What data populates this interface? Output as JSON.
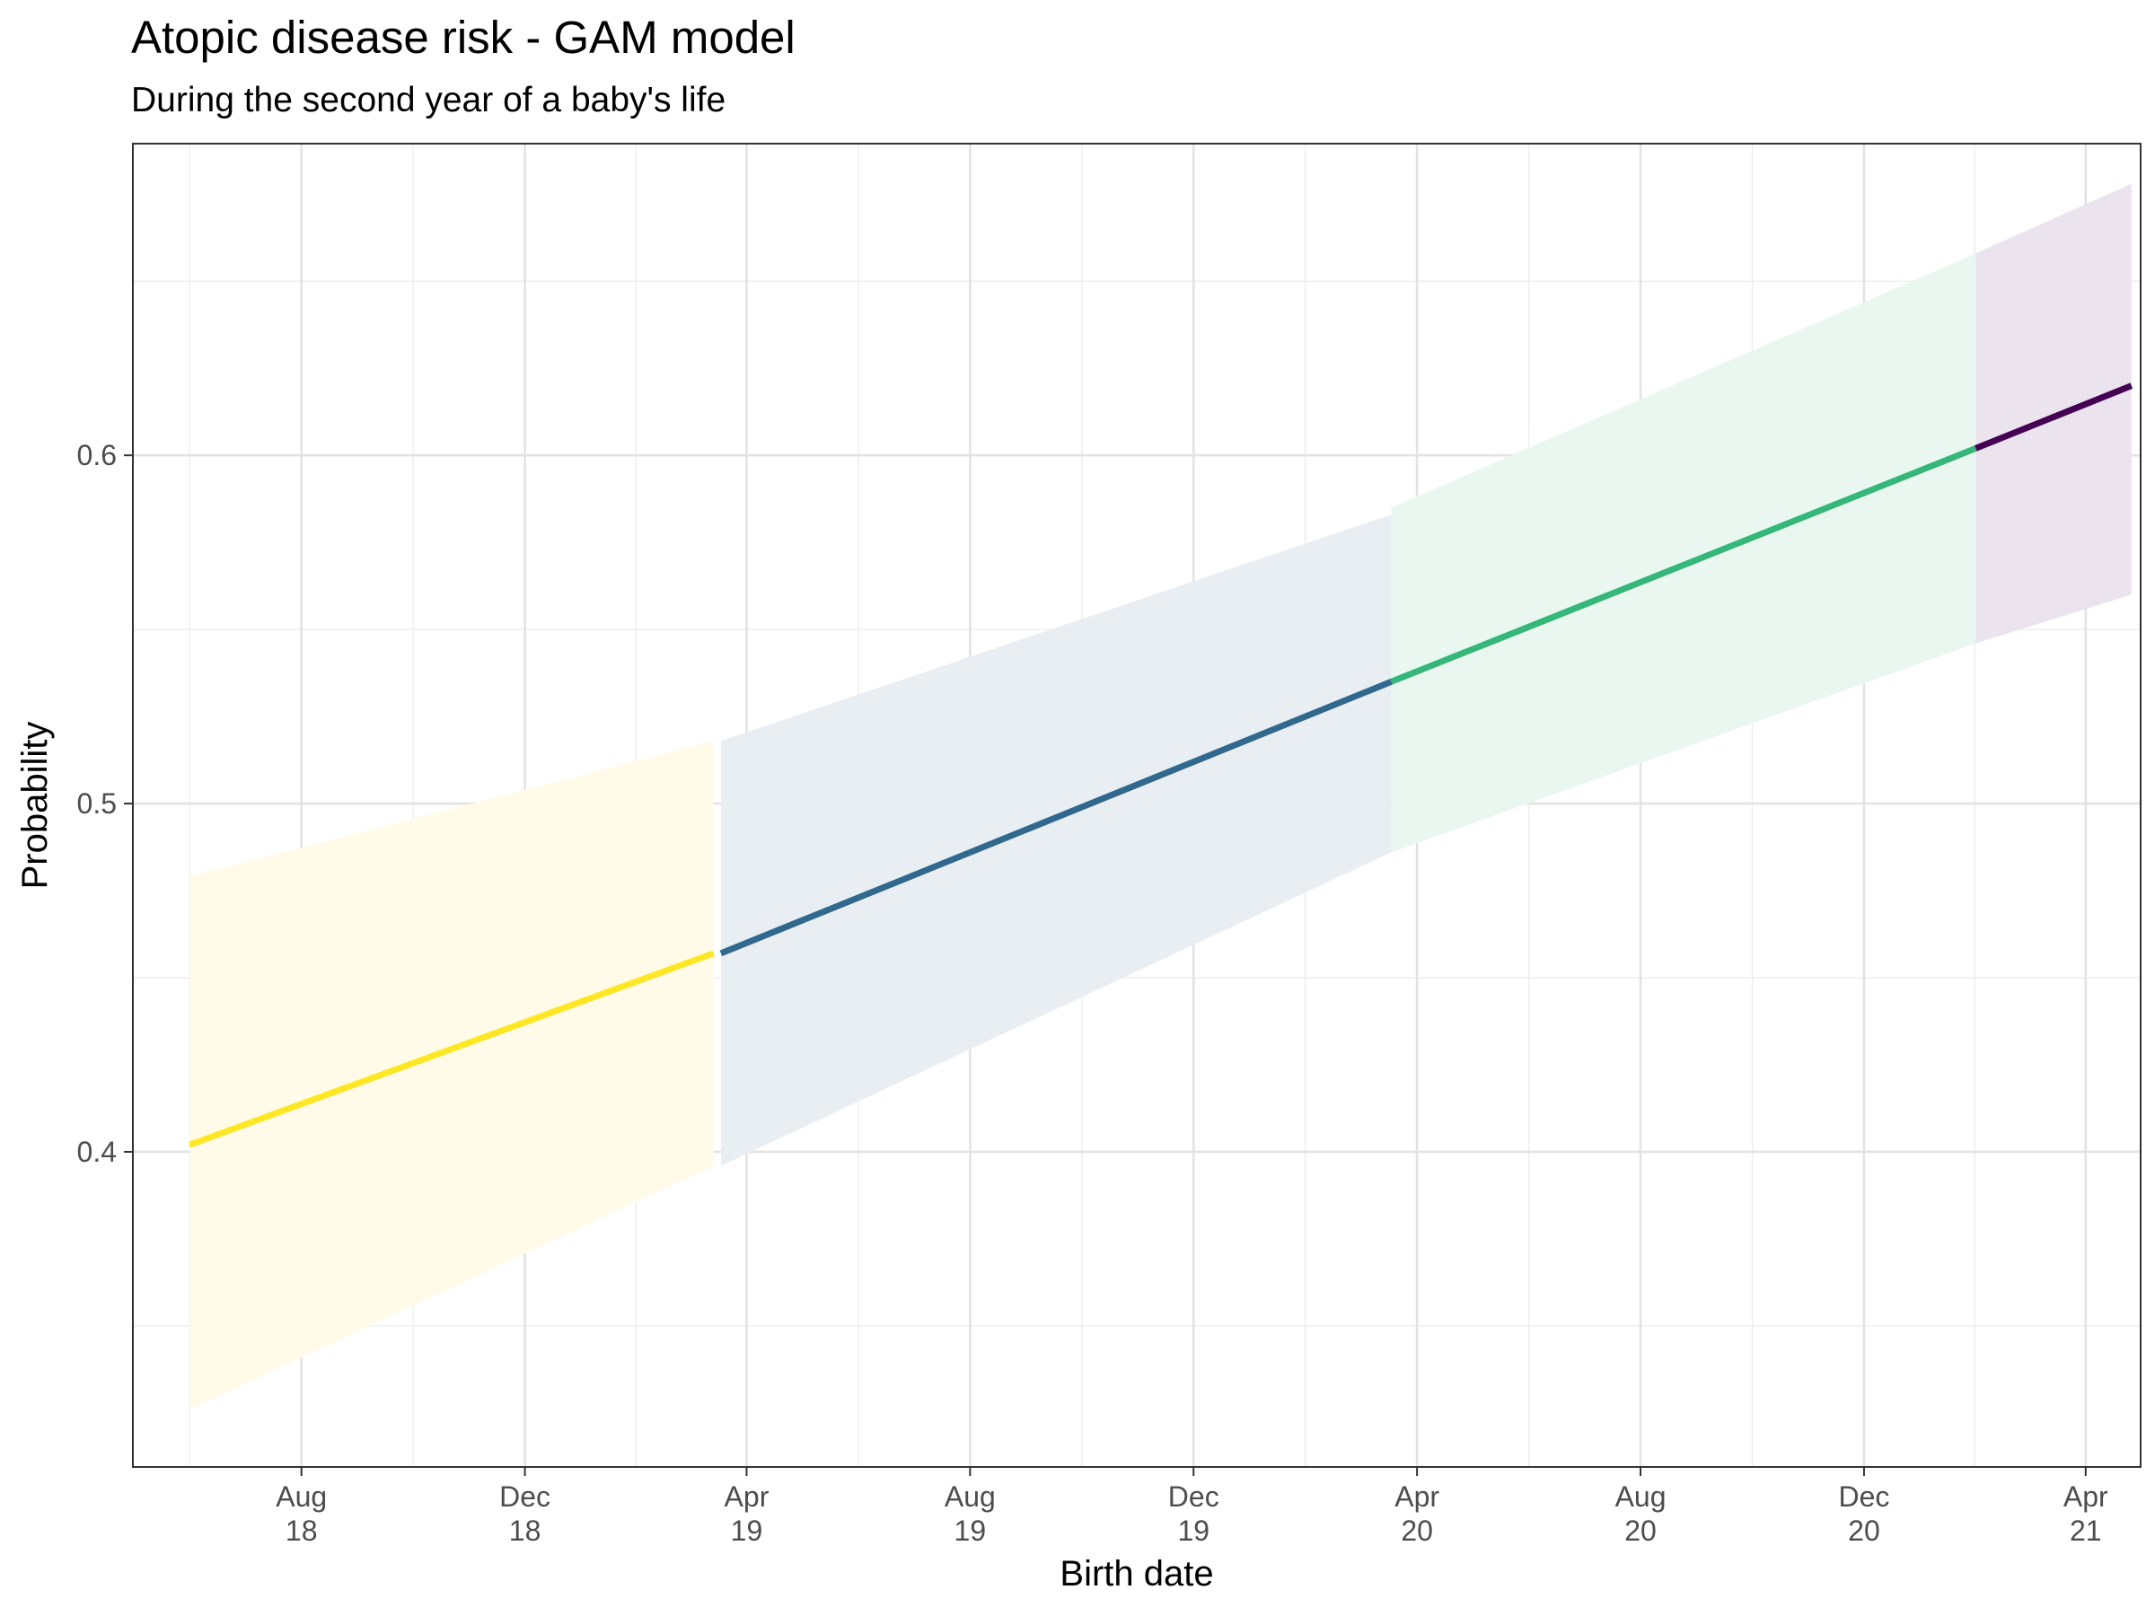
{
  "chart_data": {
    "type": "line",
    "title": "Atopic disease risk - GAM model",
    "subtitle": "During the second year of a baby's life",
    "xlabel": "Birth date",
    "ylabel": "Probability",
    "x_axis": {
      "type": "date",
      "range": [
        "2018-05-01",
        "2021-05-01"
      ],
      "ticks": [
        {
          "date": "2018-08-01",
          "label": [
            "Aug",
            "18"
          ]
        },
        {
          "date": "2018-12-01",
          "label": [
            "Dec",
            "18"
          ]
        },
        {
          "date": "2019-04-01",
          "label": [
            "Apr",
            "19"
          ]
        },
        {
          "date": "2019-08-01",
          "label": [
            "Aug",
            "19"
          ]
        },
        {
          "date": "2019-12-01",
          "label": [
            "Dec",
            "19"
          ]
        },
        {
          "date": "2020-04-01",
          "label": [
            "Apr",
            "20"
          ]
        },
        {
          "date": "2020-08-01",
          "label": [
            "Aug",
            "20"
          ]
        },
        {
          "date": "2020-12-01",
          "label": [
            "Dec",
            "20"
          ]
        },
        {
          "date": "2021-04-01",
          "label": [
            "Apr",
            "21"
          ]
        }
      ]
    },
    "y_axis": {
      "ylim": [
        0.3095,
        0.6895
      ],
      "ticks": [
        0.4,
        0.5,
        0.6
      ],
      "tick_labels": [
        "0.4",
        "0.5",
        "0.6"
      ],
      "minor_ticks": [
        0.35,
        0.45,
        0.55,
        0.65
      ]
    },
    "grid": true,
    "legend": "none",
    "series": [
      {
        "color": "#FDE725",
        "fill": "#FFFBE8",
        "x": [
          "2018-06-01",
          "2019-03-14"
        ],
        "y": [
          0.402,
          0.457
        ],
        "lower": [
          0.326,
          0.396
        ],
        "upper": [
          0.479,
          0.518
        ]
      },
      {
        "color": "#31688E",
        "fill": "#E9EEF2",
        "x": [
          "2019-03-18",
          "2020-03-18"
        ],
        "y": [
          0.457,
          0.535
        ],
        "lower": [
          0.396,
          0.486
        ],
        "upper": [
          0.518,
          0.583
        ]
      },
      {
        "color": "#35B779",
        "fill": "#EAF7F1",
        "x": [
          "2020-03-18",
          "2021-01-31"
        ],
        "y": [
          0.535,
          0.602
        ],
        "lower": [
          0.486,
          0.546
        ],
        "upper": [
          0.585,
          0.658
        ]
      },
      {
        "color": "#440154",
        "fill": "#EBE4EE",
        "x": [
          "2021-01-31",
          "2021-04-26"
        ],
        "y": [
          0.602,
          0.62
        ],
        "lower": [
          0.546,
          0.56
        ],
        "upper": [
          0.658,
          0.678
        ]
      }
    ]
  }
}
